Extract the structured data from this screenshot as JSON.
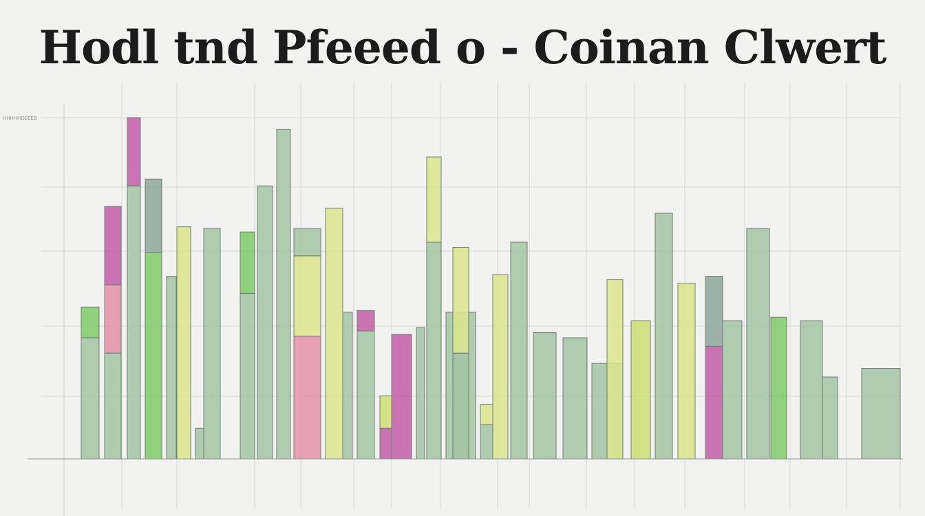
{
  "title": "Hodl tnd Pfeeed o - Coinan Clwert",
  "chart_data": {
    "type": "bar",
    "title": "Hodl tnd Pfeeed o - Coinan Clwert",
    "xlabel": "",
    "ylabel": "",
    "ylim": [
      0,
      100
    ],
    "grid": true,
    "legend": "none",
    "y_tick_labels": [
      {
        "value": 100,
        "label": "HHHHHDEEEB"
      }
    ],
    "colors": {
      "sage": "#a3c4a4",
      "green": "#7fca68",
      "lime": "#cedd74",
      "yellow": "#dce48e",
      "pink": "#e48fa8",
      "magenta": "#c25ca8",
      "slate": "#8fa59c"
    },
    "bars": [
      {
        "x0": 118,
        "x1": 144,
        "segments": [
          {
            "value": 35.5,
            "color": "sage"
          },
          {
            "value": 9,
            "color": "green"
          }
        ]
      },
      {
        "x0": 152,
        "x1": 176,
        "segments": [
          {
            "value": 31,
            "color": "sage"
          },
          {
            "value": 20,
            "color": "pink"
          },
          {
            "value": 23,
            "color": "magenta"
          }
        ]
      },
      {
        "x0": 185,
        "x1": 204,
        "segments": [
          {
            "value": 80,
            "color": "sage"
          },
          {
            "value": 20,
            "color": "magenta"
          }
        ]
      },
      {
        "x0": 211,
        "x1": 235,
        "segments": [
          {
            "value": 60.5,
            "color": "green"
          },
          {
            "value": 21.5,
            "color": "slate"
          }
        ]
      },
      {
        "x0": 242,
        "x1": 256,
        "segments": [
          {
            "value": 53.5,
            "color": "sage"
          }
        ]
      },
      {
        "x0": 257,
        "x1": 277,
        "segments": [
          {
            "value": 68,
            "color": "yellow"
          }
        ]
      },
      {
        "x0": 284,
        "x1": 296,
        "segments": [
          {
            "value": 9,
            "color": "sage"
          }
        ]
      },
      {
        "x0": 296,
        "x1": 320,
        "segments": [
          {
            "value": 67.5,
            "color": "sage"
          }
        ]
      },
      {
        "x0": 349,
        "x1": 370,
        "segments": [
          {
            "value": 48.5,
            "color": "sage"
          },
          {
            "value": 18,
            "color": "green"
          }
        ]
      },
      {
        "x0": 374,
        "x1": 396,
        "segments": [
          {
            "value": 80,
            "color": "sage"
          }
        ]
      },
      {
        "x0": 402,
        "x1": 422,
        "segments": [
          {
            "value": 96.5,
            "color": "sage"
          }
        ]
      },
      {
        "x0": 427,
        "x1": 466,
        "segments": [
          {
            "value": 36,
            "color": "pink"
          },
          {
            "value": 23.5,
            "color": "yellow"
          },
          {
            "value": 8,
            "color": "sage"
          }
        ]
      },
      {
        "x0": 473,
        "x1": 498,
        "segments": [
          {
            "value": 73.5,
            "color": "yellow"
          }
        ]
      },
      {
        "x0": 498,
        "x1": 512,
        "segments": [
          {
            "value": 43,
            "color": "sage"
          }
        ]
      },
      {
        "x0": 519,
        "x1": 544,
        "segments": [
          {
            "value": 37.5,
            "color": "sage"
          },
          {
            "value": 6,
            "color": "magenta"
          }
        ]
      },
      {
        "x0": 552,
        "x1": 569,
        "segments": [
          {
            "value": 9,
            "color": "magenta"
          },
          {
            "value": 9.5,
            "color": "lime"
          }
        ]
      },
      {
        "x0": 569,
        "x1": 598,
        "segments": [
          {
            "value": 36.5,
            "color": "magenta"
          }
        ]
      },
      {
        "x0": 605,
        "x1": 617,
        "segments": [
          {
            "value": 38.5,
            "color": "sage"
          }
        ]
      },
      {
        "x0": 620,
        "x1": 641,
        "segments": [
          {
            "value": 63.5,
            "color": "sage"
          },
          {
            "value": 25,
            "color": "yellow"
          }
        ]
      },
      {
        "x0": 648,
        "x1": 691,
        "segments": [
          {
            "value": 43,
            "color": "sage"
          }
        ]
      },
      {
        "x0": 658,
        "x1": 681,
        "segments": [
          {
            "value": 31,
            "color": "sage"
          },
          {
            "value": 31,
            "color": "yellow"
          }
        ]
      },
      {
        "x0": 698,
        "x1": 716,
        "segments": [
          {
            "value": 10,
            "color": "sage"
          },
          {
            "value": 6,
            "color": "yellow"
          }
        ]
      },
      {
        "x0": 716,
        "x1": 738,
        "segments": [
          {
            "value": 54,
            "color": "yellow"
          }
        ]
      },
      {
        "x0": 742,
        "x1": 766,
        "segments": [
          {
            "value": 63.5,
            "color": "sage"
          }
        ]
      },
      {
        "x0": 775,
        "x1": 808,
        "segments": [
          {
            "value": 37,
            "color": "sage"
          }
        ]
      },
      {
        "x0": 818,
        "x1": 853,
        "segments": [
          {
            "value": 35.5,
            "color": "sage"
          }
        ]
      },
      {
        "x0": 860,
        "x1": 905,
        "segments": [
          {
            "value": 28,
            "color": "sage"
          }
        ]
      },
      {
        "x0": 882,
        "x1": 905,
        "segments": [
          {
            "value": 52.5,
            "color": "yellow"
          }
        ]
      },
      {
        "x0": 917,
        "x1": 945,
        "segments": [
          {
            "value": 40.5,
            "color": "lime"
          }
        ]
      },
      {
        "x0": 952,
        "x1": 977,
        "segments": [
          {
            "value": 72,
            "color": "sage"
          }
        ]
      },
      {
        "x0": 985,
        "x1": 1010,
        "segments": [
          {
            "value": 51.5,
            "color": "yellow"
          }
        ]
      },
      {
        "x0": 1025,
        "x1": 1050,
        "segments": [
          {
            "value": 33,
            "color": "magenta"
          },
          {
            "value": 20.5,
            "color": "slate"
          }
        ]
      },
      {
        "x0": 1050,
        "x1": 1078,
        "segments": [
          {
            "value": 40.5,
            "color": "sage"
          }
        ]
      },
      {
        "x0": 1085,
        "x1": 1118,
        "segments": [
          {
            "value": 67.5,
            "color": "sage"
          }
        ]
      },
      {
        "x0": 1120,
        "x1": 1143,
        "segments": [
          {
            "value": 41.5,
            "color": "green"
          }
        ]
      },
      {
        "x0": 1163,
        "x1": 1195,
        "segments": [
          {
            "value": 40.5,
            "color": "sage"
          }
        ]
      },
      {
        "x0": 1195,
        "x1": 1217,
        "segments": [
          {
            "value": 24,
            "color": "sage"
          }
        ]
      },
      {
        "x0": 1252,
        "x1": 1308,
        "segments": [
          {
            "value": 26.5,
            "color": "sage"
          }
        ]
      }
    ]
  }
}
